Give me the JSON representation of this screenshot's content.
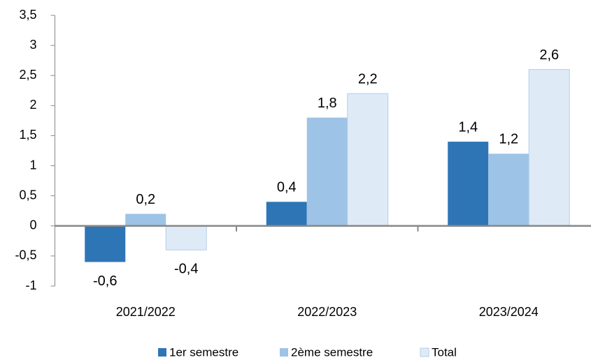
{
  "chart_data": {
    "type": "bar",
    "categories": [
      "2021/2022",
      "2022/2023",
      "2023/2024"
    ],
    "series": [
      {
        "name": "1er semestre",
        "color": "#2e75b6",
        "values": [
          -0.6,
          0.4,
          1.4
        ],
        "value_labels": [
          "-0,6",
          "0,4",
          "1,4"
        ]
      },
      {
        "name": "2ème semestre",
        "color": "#9dc3e6",
        "values": [
          0.2,
          1.8,
          1.2
        ],
        "value_labels": [
          "0,2",
          "1,8",
          "1,2"
        ]
      },
      {
        "name": "Total",
        "color": "#deebf7",
        "values": [
          -0.4,
          2.2,
          2.6
        ],
        "value_labels": [
          "-0,4",
          "2,2",
          "2,6"
        ]
      }
    ],
    "ylim": [
      -1,
      3.5
    ],
    "yticks": [
      -1,
      {
        "value": -0.5,
        "label": "-0,5"
      },
      0,
      {
        "value": 0.5,
        "label": "0,5"
      },
      1,
      {
        "value": 1.5,
        "label": "1,5"
      },
      2,
      {
        "value": 2.5,
        "label": "2,5"
      },
      3,
      {
        "value": 3.5,
        "label": "3,5"
      }
    ],
    "grid": false,
    "legend": "bottom"
  }
}
